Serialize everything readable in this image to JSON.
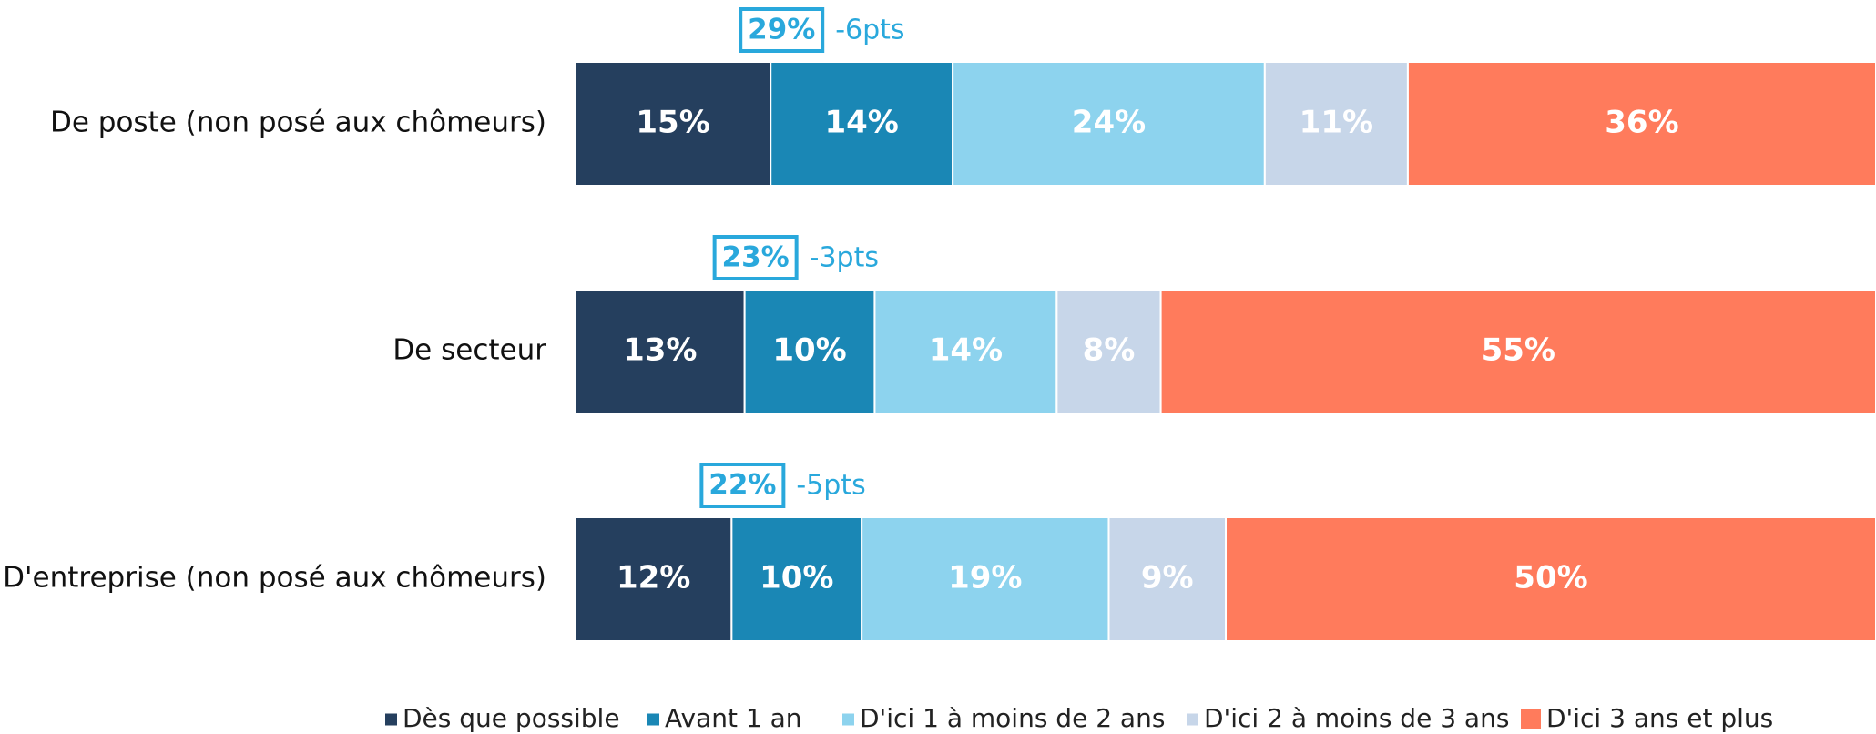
{
  "chart_data": {
    "type": "stacked-bar-horizontal",
    "categories": [
      "De poste (non posé aux chômeurs)",
      "De secteur",
      "D'entreprise (non posé aux chômeurs)"
    ],
    "series": [
      {
        "name": "Dès que possible",
        "color": "#253f5e",
        "values": [
          15,
          13,
          12
        ],
        "value_labels": [
          "15%",
          "13%",
          "12%"
        ]
      },
      {
        "name": "Avant 1 an",
        "color": "#1a87b5",
        "values": [
          14,
          10,
          10
        ],
        "value_labels": [
          "14%",
          "10%",
          "10%"
        ]
      },
      {
        "name": "D'ici 1 à moins de 2 ans",
        "color": "#8dd3ee",
        "values": [
          24,
          14,
          19
        ],
        "value_labels": [
          "24%",
          "14%",
          "19%"
        ]
      },
      {
        "name": "D'ici 2 à moins de 3 ans",
        "color": "#c7d6e9",
        "values": [
          11,
          8,
          9
        ],
        "value_labels": [
          "11%",
          "8%",
          "9%"
        ]
      },
      {
        "name": "D'ici 3 ans et plus",
        "color": "#ff7b5c",
        "values": [
          36,
          55,
          50
        ],
        "value_labels": [
          "36%",
          "55%",
          "50%"
        ]
      }
    ],
    "annotations": [
      {
        "text": "29%",
        "delta": "-6pts"
      },
      {
        "text": "23%",
        "delta": "-3pts"
      },
      {
        "text": "22%",
        "delta": "-5pts"
      }
    ],
    "xlim": [
      0,
      100
    ],
    "legend": "bottom"
  }
}
